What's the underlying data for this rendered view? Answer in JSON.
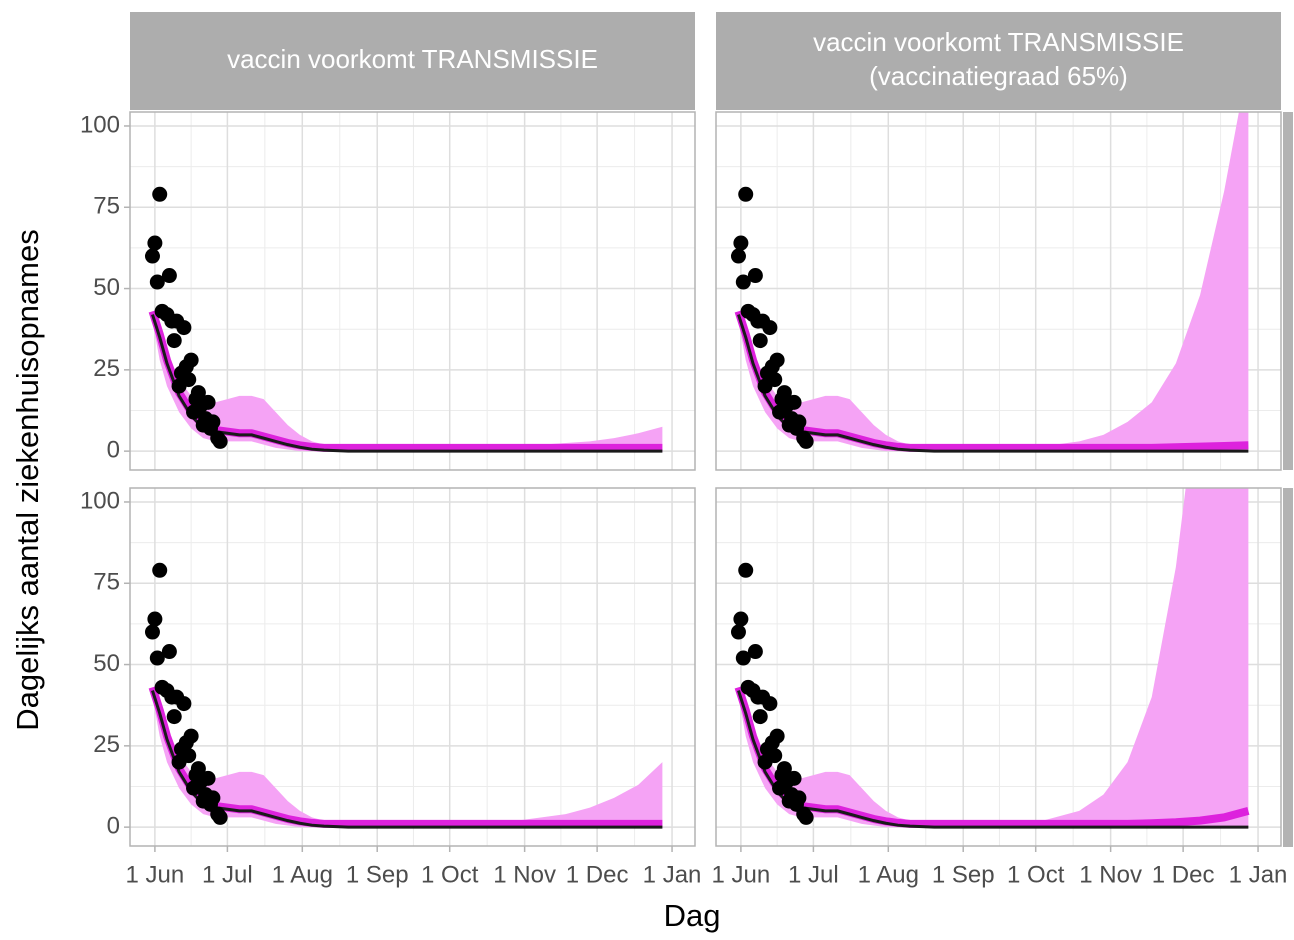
{
  "chart_data": {
    "type": "facet",
    "y_label": "Dagelijks aantal ziekenhuisopnames",
    "x_label": "Dag",
    "strips": [
      [
        "vaccin voorkomt TRANSMISSIE"
      ],
      [
        "vaccin voorkomt TRANSMISSIE",
        "(vaccinatiegraad 65%)"
      ]
    ],
    "xlim": [
      -10.3,
      223.5
    ],
    "ylim": [
      -5.8,
      104.3
    ],
    "xticks": [
      {
        "value": 0,
        "label": "1 Jun"
      },
      {
        "value": 30,
        "label": "1 Jul"
      },
      {
        "value": 61,
        "label": "1 Aug"
      },
      {
        "value": 92,
        "label": "1 Sep"
      },
      {
        "value": 122,
        "label": "1 Oct"
      },
      {
        "value": 153,
        "label": "1 Nov"
      },
      {
        "value": 183,
        "label": "1 Dec"
      },
      {
        "value": 214,
        "label": "1 Jan"
      }
    ],
    "yticks": [
      0,
      25,
      50,
      75,
      100
    ],
    "grid": true,
    "x": [
      -1,
      2,
      5,
      10,
      15,
      20,
      25,
      30,
      35,
      40,
      45,
      50,
      55,
      60,
      65,
      70,
      80,
      90,
      100,
      110,
      120,
      130,
      140,
      150,
      160,
      170,
      180,
      190,
      200,
      210
    ],
    "ribbon_color": "#f5a3f5",
    "line_colors": [
      "#dd22dd",
      "#1a1a1a"
    ],
    "point_color": "#000000",
    "points_x": [
      -1,
      0,
      1,
      2,
      3,
      5,
      6,
      7,
      8,
      9,
      10,
      11,
      12,
      13,
      14,
      15,
      16,
      17,
      18,
      19,
      20,
      21,
      22,
      23,
      24,
      26,
      27
    ],
    "points": [
      60,
      64,
      52,
      79,
      43,
      42,
      54,
      40,
      34,
      40,
      20,
      24,
      38,
      26,
      22,
      28,
      12,
      16,
      18,
      14,
      8,
      10,
      15,
      7,
      9,
      4,
      3
    ],
    "panels": [
      {
        "lower": [
          40,
          28,
          20,
          12,
          7,
          4,
          3,
          3,
          3,
          3,
          2,
          1,
          0.5,
          0,
          0,
          0,
          0,
          0,
          0,
          0,
          0,
          0,
          0,
          0,
          0,
          0,
          0,
          0,
          0,
          0
        ],
        "upper": [
          43,
          38,
          30,
          22,
          17,
          14,
          15,
          16,
          17,
          17,
          16,
          12,
          8,
          5,
          3,
          2,
          1,
          1,
          1,
          1,
          1,
          1,
          1,
          1.5,
          2,
          2.5,
          3,
          4,
          5.5,
          7.5
        ],
        "lines": [
          [
            43,
            36,
            28,
            18,
            12,
            8,
            6.5,
            6,
            5.5,
            5.5,
            4.5,
            3.5,
            2.5,
            1.8,
            1.3,
            1,
            1,
            1,
            1,
            1,
            1,
            1,
            1,
            1,
            1,
            1,
            1,
            1,
            1,
            1
          ],
          [
            42,
            35,
            27,
            17,
            11,
            7,
            6,
            5.5,
            5,
            5,
            4,
            3,
            2,
            1.2,
            0.6,
            0.3,
            0,
            0,
            0,
            0,
            0,
            0,
            0,
            0,
            0,
            0,
            0,
            0,
            0,
            0
          ]
        ]
      },
      {
        "lower": [
          40,
          28,
          20,
          12,
          7,
          4,
          3,
          3,
          3,
          3,
          2,
          1,
          0.5,
          0,
          0,
          0,
          0,
          0,
          0,
          0,
          0,
          0,
          0,
          0,
          0,
          0,
          0,
          0,
          0,
          0
        ],
        "upper": [
          43,
          38,
          30,
          22,
          17,
          14,
          15,
          16,
          17,
          17,
          16,
          12,
          8,
          5,
          3,
          2,
          1,
          1,
          1,
          1,
          1,
          2,
          3,
          5,
          9,
          15,
          27,
          48,
          80,
          120
        ],
        "lines": [
          [
            43,
            36,
            28,
            18,
            12,
            8,
            6.5,
            6,
            5.5,
            5.5,
            4.5,
            3.5,
            2.5,
            1.8,
            1.3,
            1,
            1,
            1,
            1,
            1,
            1,
            1,
            1,
            1,
            1,
            1,
            1.2,
            1.4,
            1.6,
            1.8
          ],
          [
            42,
            35,
            27,
            17,
            11,
            7,
            6,
            5.5,
            5,
            5,
            4,
            3,
            2,
            1.2,
            0.6,
            0.3,
            0,
            0,
            0,
            0,
            0,
            0,
            0,
            0,
            0,
            0,
            0,
            0,
            0,
            0
          ]
        ]
      },
      {
        "lower": [
          40,
          28,
          20,
          12,
          7,
          4,
          3,
          3,
          3,
          3,
          2,
          1,
          0.5,
          0,
          0,
          0,
          0,
          0,
          0,
          0,
          0,
          0,
          0,
          0,
          0,
          0,
          0,
          0,
          0,
          0
        ],
        "upper": [
          43,
          38,
          30,
          22,
          17,
          14,
          15,
          16,
          17,
          17,
          16,
          12,
          8,
          5,
          3,
          2,
          1,
          1,
          1,
          1,
          1,
          1,
          1,
          2,
          3,
          4,
          6,
          9,
          13,
          20
        ],
        "lines": [
          [
            43,
            36,
            28,
            18,
            12,
            8,
            6.5,
            6,
            5.5,
            5.5,
            4.5,
            3.5,
            2.5,
            1.8,
            1.3,
            1,
            1,
            1,
            1,
            1,
            1,
            1,
            1,
            1,
            1,
            1,
            1,
            1,
            1,
            1
          ],
          [
            42,
            35,
            27,
            17,
            11,
            7,
            6,
            5.5,
            5,
            5,
            4,
            3,
            2,
            1.2,
            0.6,
            0.3,
            0,
            0,
            0,
            0,
            0,
            0,
            0,
            0,
            0,
            0,
            0,
            0,
            0,
            0
          ]
        ]
      },
      {
        "lower": [
          40,
          28,
          20,
          12,
          7,
          4,
          3,
          3,
          3,
          3,
          2,
          1,
          0.5,
          0,
          0,
          0,
          0,
          0,
          0,
          0,
          0,
          0,
          0,
          0,
          0,
          0,
          0,
          0,
          0,
          0
        ],
        "upper": [
          43,
          38,
          30,
          22,
          17,
          14,
          15,
          16,
          17,
          17,
          16,
          12,
          8,
          5,
          3,
          2,
          1,
          1,
          1,
          1,
          1,
          3,
          5,
          10,
          20,
          40,
          80,
          140,
          220,
          330
        ],
        "lines": [
          [
            43,
            36,
            28,
            18,
            12,
            8,
            6.5,
            6,
            5.5,
            5.5,
            4.5,
            3.5,
            2.5,
            1.8,
            1.3,
            1,
            1,
            1,
            1,
            1,
            1,
            1,
            1,
            1,
            1,
            1.2,
            1.5,
            2,
            3,
            5
          ],
          [
            42,
            35,
            27,
            17,
            11,
            7,
            6,
            5.5,
            5,
            5,
            4,
            3,
            2,
            1.2,
            0.6,
            0.3,
            0,
            0,
            0,
            0,
            0,
            0,
            0,
            0,
            0,
            0,
            0,
            0,
            0,
            0
          ]
        ]
      }
    ]
  }
}
